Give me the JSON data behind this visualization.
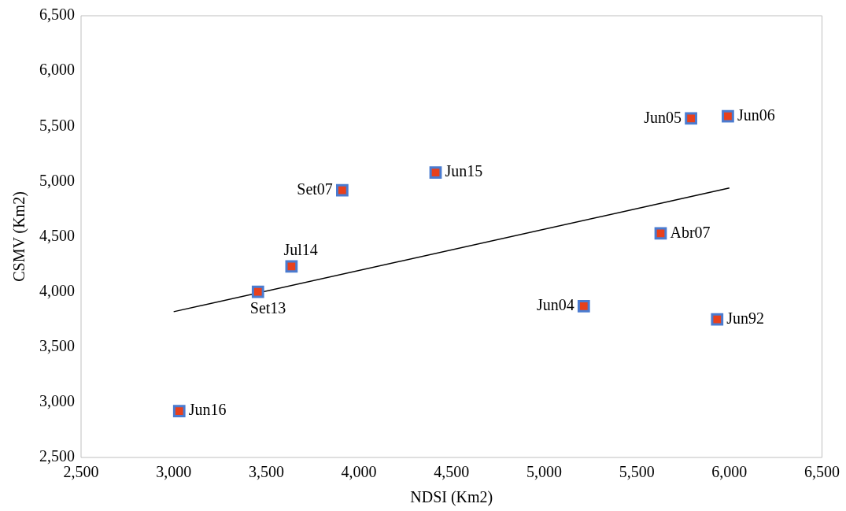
{
  "chart_data": {
    "type": "scatter",
    "xlabel": "NDSI (Km2)",
    "ylabel": "CSMV (Km2)",
    "grid": false,
    "legend": false,
    "xlim": [
      2500,
      6500
    ],
    "ylim": [
      2500,
      6500
    ],
    "xticks": [
      {
        "value": 2500,
        "label": "2,500"
      },
      {
        "value": 3000,
        "label": "3,000"
      },
      {
        "value": 3500,
        "label": "3,500"
      },
      {
        "value": 4000,
        "label": "4,000"
      },
      {
        "value": 4500,
        "label": "4,500"
      },
      {
        "value": 5000,
        "label": "5,000"
      },
      {
        "value": 5500,
        "label": "5,500"
      },
      {
        "value": 6000,
        "label": "6,000"
      },
      {
        "value": 6500,
        "label": "6,500"
      }
    ],
    "yticks": [
      {
        "value": 2500,
        "label": "2,500"
      },
      {
        "value": 3000,
        "label": "3,000"
      },
      {
        "value": 3500,
        "label": "3,500"
      },
      {
        "value": 4000,
        "label": "4,000"
      },
      {
        "value": 4500,
        "label": "4,500"
      },
      {
        "value": 5000,
        "label": "5,000"
      },
      {
        "value": 5500,
        "label": "5,500"
      },
      {
        "value": 6000,
        "label": "6,000"
      },
      {
        "value": 6500,
        "label": "6,500"
      }
    ],
    "series": [
      {
        "type": "scatter",
        "marker": "square",
        "color": "#e8401c",
        "x": [
          3030,
          3455,
          3636,
          3910,
          4414,
          5793,
          5992,
          5629,
          5214,
          5934
        ],
        "values": [
          2920,
          4000,
          4230,
          4920,
          5080,
          5570,
          5590,
          4530,
          3870,
          3750
        ]
      },
      {
        "type": "line",
        "color": "#000000",
        "x": [
          3000,
          6000
        ],
        "values": [
          3820,
          4940
        ]
      }
    ],
    "annotations": [
      {
        "text": "Jun16",
        "x": 3030,
        "y": 2920
      },
      {
        "text": "Set13",
        "x": 3455,
        "y": 4000
      },
      {
        "text": "Jul14",
        "x": 3636,
        "y": 4230
      },
      {
        "text": "Set07",
        "x": 3910,
        "y": 4920
      },
      {
        "text": "Jun15",
        "x": 4414,
        "y": 5080
      },
      {
        "text": "Jun05",
        "x": 5793,
        "y": 5570
      },
      {
        "text": "Jun06",
        "x": 5992,
        "y": 5590
      },
      {
        "text": "Abr07",
        "x": 5629,
        "y": 4530
      },
      {
        "text": "Jun04",
        "x": 5214,
        "y": 3870
      },
      {
        "text": "Jun92",
        "x": 5934,
        "y": 3750
      }
    ]
  }
}
